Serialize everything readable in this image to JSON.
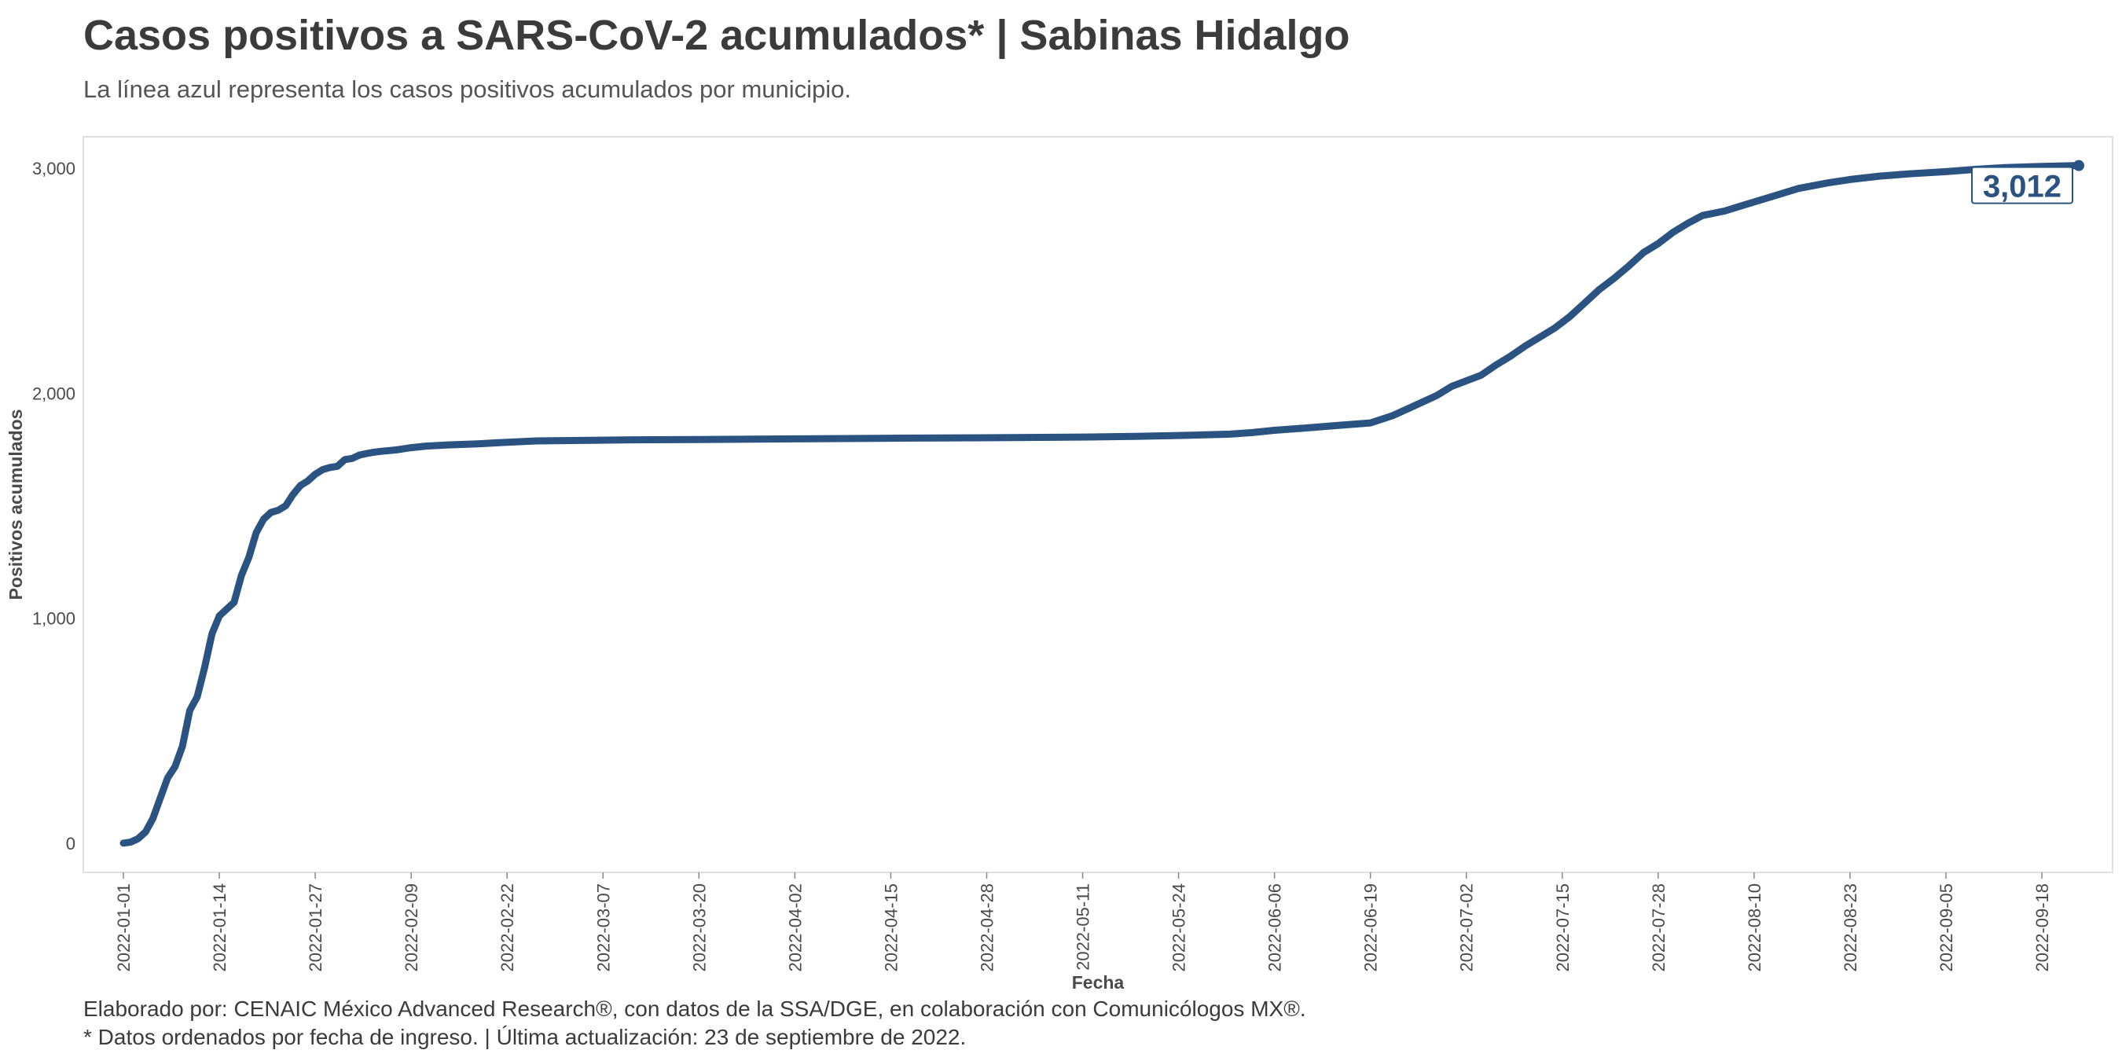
{
  "header": {
    "title": "Casos positivos a SARS-CoV-2 acumulados* | Sabinas Hidalgo",
    "subtitle": "La línea azul representa los casos positivos acumulados por municipio."
  },
  "footer": {
    "line1": "Elaborado por: CENAIC México Advanced Research®, con datos de la SSA/DGE, en colaboración con Comunicólogos MX®.",
    "line2": "* Datos ordenados por fecha de ingreso. | Última actualización: 23 de septiembre de 2022."
  },
  "colors": {
    "line": "#2a5381",
    "panel_border": "#e0e0e0"
  },
  "chart_data": {
    "type": "line",
    "title": "Casos positivos a SARS-CoV-2 acumulados* | Sabinas Hidalgo",
    "subtitle": "La línea azul representa los casos positivos acumulados por municipio.",
    "xlabel": "Fecha",
    "ylabel": "Positivos acumulados",
    "x_start": "2022-01-01",
    "x_end": "2022-09-23",
    "ylim": [
      -130,
      3140
    ],
    "y_ticks": [
      0,
      1000,
      2000,
      3000
    ],
    "y_tick_labels": [
      "0",
      "1,000",
      "2,000",
      "3,000"
    ],
    "x_ticks": [
      "2022-01-01",
      "2022-01-14",
      "2022-01-27",
      "2022-02-09",
      "2022-02-22",
      "2022-03-07",
      "2022-03-20",
      "2022-04-02",
      "2022-04-15",
      "2022-04-28",
      "2022-05-11",
      "2022-05-24",
      "2022-06-06",
      "2022-06-19",
      "2022-07-02",
      "2022-07-15",
      "2022-07-28",
      "2022-08-10",
      "2022-08-23",
      "2022-09-05",
      "2022-09-18"
    ],
    "grid": false,
    "end_label": "3,012",
    "series": [
      {
        "points": [
          [
            "2022-01-01",
            0
          ],
          [
            "2022-01-02",
            5
          ],
          [
            "2022-01-03",
            20
          ],
          [
            "2022-01-04",
            50
          ],
          [
            "2022-01-05",
            110
          ],
          [
            "2022-01-06",
            200
          ],
          [
            "2022-01-07",
            290
          ],
          [
            "2022-01-08",
            340
          ],
          [
            "2022-01-09",
            430
          ],
          [
            "2022-01-10",
            590
          ],
          [
            "2022-01-11",
            650
          ],
          [
            "2022-01-12",
            780
          ],
          [
            "2022-01-13",
            930
          ],
          [
            "2022-01-14",
            1010
          ],
          [
            "2022-01-15",
            1040
          ],
          [
            "2022-01-16",
            1070
          ],
          [
            "2022-01-17",
            1190
          ],
          [
            "2022-01-18",
            1270
          ],
          [
            "2022-01-19",
            1380
          ],
          [
            "2022-01-20",
            1440
          ],
          [
            "2022-01-21",
            1470
          ],
          [
            "2022-01-22",
            1480
          ],
          [
            "2022-01-23",
            1500
          ],
          [
            "2022-01-24",
            1550
          ],
          [
            "2022-01-25",
            1590
          ],
          [
            "2022-01-26",
            1610
          ],
          [
            "2022-01-27",
            1640
          ],
          [
            "2022-01-28",
            1660
          ],
          [
            "2022-01-29",
            1670
          ],
          [
            "2022-01-30",
            1675
          ],
          [
            "2022-01-31",
            1705
          ],
          [
            "2022-02-01",
            1710
          ],
          [
            "2022-02-02",
            1725
          ],
          [
            "2022-02-03",
            1732
          ],
          [
            "2022-02-04",
            1738
          ],
          [
            "2022-02-05",
            1742
          ],
          [
            "2022-02-06",
            1745
          ],
          [
            "2022-02-07",
            1748
          ],
          [
            "2022-02-09",
            1758
          ],
          [
            "2022-02-11",
            1765
          ],
          [
            "2022-02-14",
            1770
          ],
          [
            "2022-02-18",
            1775
          ],
          [
            "2022-02-22",
            1782
          ],
          [
            "2022-02-26",
            1788
          ],
          [
            "2022-03-04",
            1790
          ],
          [
            "2022-03-11",
            1793
          ],
          [
            "2022-03-20",
            1794
          ],
          [
            "2022-04-02",
            1797
          ],
          [
            "2022-04-15",
            1800
          ],
          [
            "2022-04-28",
            1802
          ],
          [
            "2022-05-11",
            1805
          ],
          [
            "2022-05-18",
            1808
          ],
          [
            "2022-05-24",
            1812
          ],
          [
            "2022-05-31",
            1818
          ],
          [
            "2022-06-03",
            1825
          ],
          [
            "2022-06-06",
            1835
          ],
          [
            "2022-06-10",
            1845
          ],
          [
            "2022-06-15",
            1858
          ],
          [
            "2022-06-19",
            1868
          ],
          [
            "2022-06-22",
            1900
          ],
          [
            "2022-06-25",
            1945
          ],
          [
            "2022-06-28",
            1990
          ],
          [
            "2022-06-30",
            2030
          ],
          [
            "2022-07-02",
            2055
          ],
          [
            "2022-07-04",
            2080
          ],
          [
            "2022-07-06",
            2125
          ],
          [
            "2022-07-08",
            2165
          ],
          [
            "2022-07-10",
            2210
          ],
          [
            "2022-07-12",
            2250
          ],
          [
            "2022-07-14",
            2290
          ],
          [
            "2022-07-16",
            2340
          ],
          [
            "2022-07-18",
            2400
          ],
          [
            "2022-07-20",
            2460
          ],
          [
            "2022-07-22",
            2510
          ],
          [
            "2022-07-24",
            2565
          ],
          [
            "2022-07-26",
            2625
          ],
          [
            "2022-07-28",
            2665
          ],
          [
            "2022-07-30",
            2715
          ],
          [
            "2022-08-01",
            2755
          ],
          [
            "2022-08-03",
            2790
          ],
          [
            "2022-08-06",
            2810
          ],
          [
            "2022-08-08",
            2830
          ],
          [
            "2022-08-10",
            2850
          ],
          [
            "2022-08-13",
            2880
          ],
          [
            "2022-08-16",
            2910
          ],
          [
            "2022-08-20",
            2935
          ],
          [
            "2022-08-23",
            2950
          ],
          [
            "2022-08-27",
            2965
          ],
          [
            "2022-08-31",
            2975
          ],
          [
            "2022-09-05",
            2985
          ],
          [
            "2022-09-09",
            2995
          ],
          [
            "2022-09-13",
            3003
          ],
          [
            "2022-09-18",
            3008
          ],
          [
            "2022-09-23",
            3012
          ]
        ]
      }
    ]
  }
}
